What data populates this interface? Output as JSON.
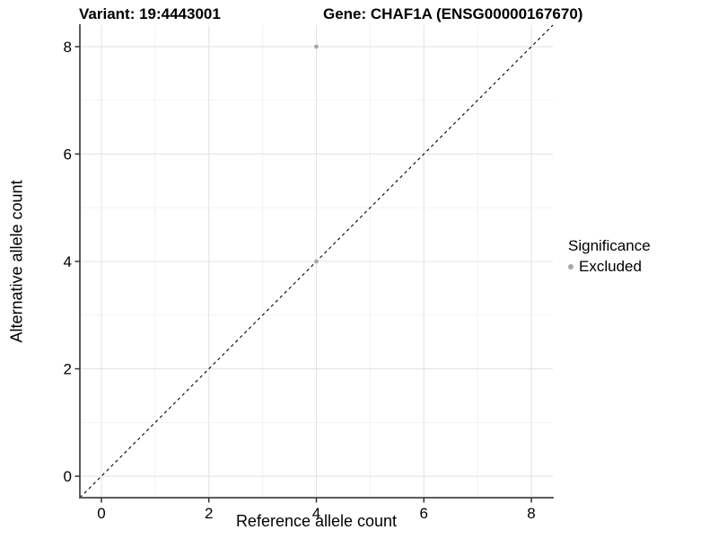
{
  "chart_data": {
    "type": "scatter",
    "title_left": "Variant: 19:4443001",
    "title_right": "Gene: CHAF1A (ENSG00000167670)",
    "xlabel": "Reference allele count",
    "ylabel": "Alternative allele count",
    "xlim": [
      -0.4,
      8.4
    ],
    "ylim": [
      -0.4,
      8.4
    ],
    "xticks": [
      0,
      2,
      4,
      6,
      8
    ],
    "yticks": [
      0,
      2,
      4,
      6,
      8
    ],
    "minor_xticks": [
      1,
      3,
      5,
      7
    ],
    "minor_yticks": [
      1,
      3,
      5,
      7
    ],
    "grid": "on",
    "series": [
      {
        "name": "Excluded",
        "color": "#a8a8a8",
        "points": [
          {
            "x": 4,
            "y": 8
          },
          {
            "x": 4,
            "y": 4
          }
        ]
      }
    ],
    "identity_line": {
      "style": "dashed",
      "color": "#000000",
      "x1": -0.4,
      "y1": -0.4,
      "x2": 8.4,
      "y2": 8.4
    },
    "legend": {
      "title": "Significance",
      "position": "right",
      "items": [
        {
          "label": "Excluded",
          "color": "#a8a8a8"
        }
      ]
    },
    "colors": {
      "background": "#ffffff",
      "grid_major": "#e4e4e4",
      "grid_minor": "#f1f1f1",
      "axis_line": "#5c5c5c",
      "tick_mark": "#333333",
      "text": "#000000"
    }
  }
}
